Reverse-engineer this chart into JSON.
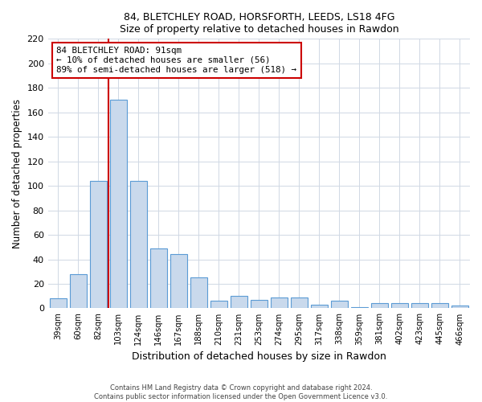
{
  "title1": "84, BLETCHLEY ROAD, HORSFORTH, LEEDS, LS18 4FG",
  "title2": "Size of property relative to detached houses in Rawdon",
  "xlabel": "Distribution of detached houses by size in Rawdon",
  "ylabel": "Number of detached properties",
  "categories": [
    "39sqm",
    "60sqm",
    "82sqm",
    "103sqm",
    "124sqm",
    "146sqm",
    "167sqm",
    "188sqm",
    "210sqm",
    "231sqm",
    "253sqm",
    "274sqm",
    "295sqm",
    "317sqm",
    "338sqm",
    "359sqm",
    "381sqm",
    "402sqm",
    "423sqm",
    "445sqm",
    "466sqm"
  ],
  "values": [
    8,
    28,
    104,
    170,
    104,
    49,
    44,
    25,
    6,
    10,
    7,
    9,
    9,
    3,
    6,
    1,
    4,
    4,
    4,
    4,
    2
  ],
  "bar_color": "#c9d9ec",
  "bar_edge_color": "#5b9bd5",
  "annotation_text_line1": "84 BLETCHLEY ROAD: 91sqm",
  "annotation_text_line2": "← 10% of detached houses are smaller (56)",
  "annotation_text_line3": "89% of semi-detached houses are larger (518) →",
  "annotation_box_color": "#ffffff",
  "annotation_box_edge_color": "#cc0000",
  "vline_color": "#cc0000",
  "vline_x": 2.5,
  "ylim": [
    0,
    220
  ],
  "yticks": [
    0,
    20,
    40,
    60,
    80,
    100,
    120,
    140,
    160,
    180,
    200,
    220
  ],
  "footer_line1": "Contains HM Land Registry data © Crown copyright and database right 2024.",
  "footer_line2": "Contains public sector information licensed under the Open Government Licence v3.0.",
  "grid_color": "#d0d8e4",
  "background_color": "#ffffff"
}
